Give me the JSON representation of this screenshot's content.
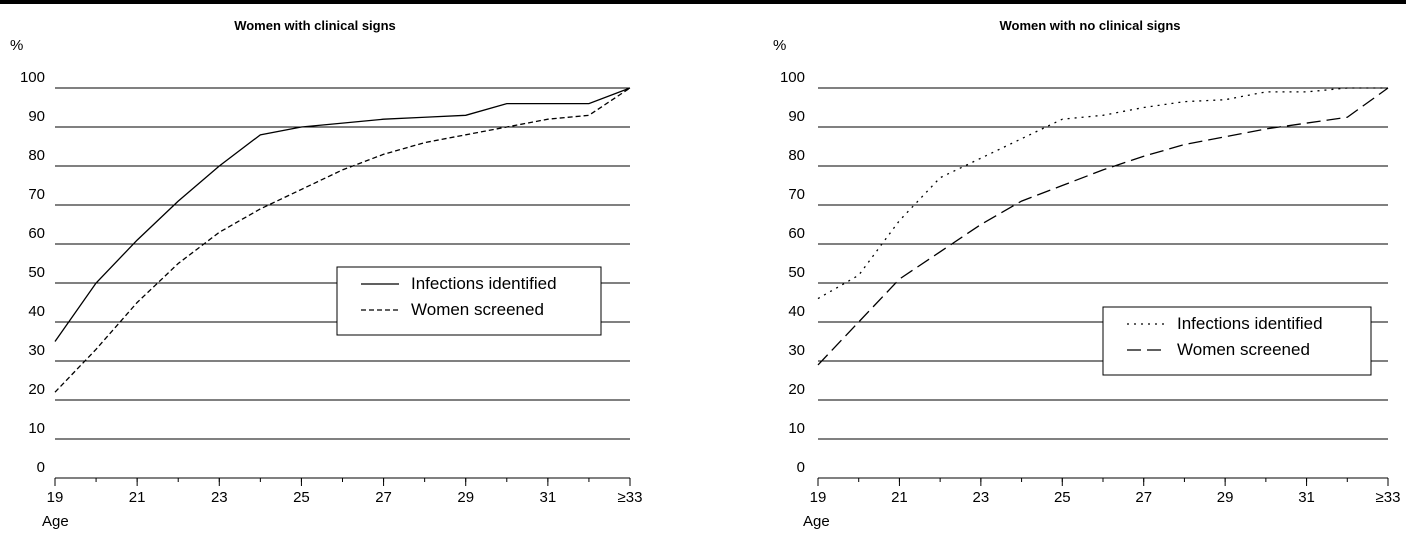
{
  "chart_data": [
    {
      "type": "line",
      "title": "Women with clinical signs",
      "ylabel": "%",
      "xlabel": "Age",
      "x_ticks": [
        "19",
        "21",
        "23",
        "25",
        "27",
        "29",
        "31",
        "≥33"
      ],
      "x_values": [
        19,
        20,
        21,
        22,
        23,
        24,
        25,
        26,
        27,
        28,
        29,
        30,
        31,
        32,
        33
      ],
      "y_ticks": [
        0,
        10,
        20,
        30,
        40,
        50,
        60,
        70,
        80,
        90,
        100
      ],
      "ylim": [
        0,
        100
      ],
      "xlim": [
        19,
        33
      ],
      "grid": "horizontal",
      "legend_position": "right-middle",
      "series": [
        {
          "name": "Infections identified",
          "style": "solid",
          "values": [
            35,
            50,
            61,
            71,
            80,
            88,
            90,
            91,
            92,
            92.5,
            93,
            96,
            96,
            96,
            100
          ]
        },
        {
          "name": "Women screened",
          "style": "dashed",
          "values": [
            22,
            33,
            45,
            55,
            63,
            69,
            74,
            79,
            83,
            86,
            88,
            90,
            92,
            93,
            100
          ]
        }
      ]
    },
    {
      "type": "line",
      "title": "Women with no clinical signs",
      "ylabel": "%",
      "xlabel": "Age",
      "x_ticks": [
        "19",
        "21",
        "23",
        "25",
        "27",
        "29",
        "31",
        "≥33"
      ],
      "x_values": [
        19,
        20,
        21,
        22,
        23,
        24,
        25,
        26,
        27,
        28,
        29,
        30,
        31,
        32,
        33
      ],
      "y_ticks": [
        0,
        10,
        20,
        30,
        40,
        50,
        60,
        70,
        80,
        90,
        100
      ],
      "ylim": [
        0,
        100
      ],
      "xlim": [
        19,
        33
      ],
      "grid": "horizontal",
      "legend_position": "right-middle",
      "series": [
        {
          "name": "Infections identified",
          "style": "dotted",
          "values": [
            46,
            52,
            66,
            77,
            82,
            87,
            92,
            93,
            95,
            96.5,
            97,
            99,
            99,
            100,
            100
          ]
        },
        {
          "name": "Women screened",
          "style": "longdash",
          "values": [
            29,
            40,
            51,
            58,
            65,
            71,
            75,
            79,
            82.5,
            85.5,
            87.5,
            89.5,
            91,
            92.5,
            100
          ]
        }
      ]
    }
  ]
}
